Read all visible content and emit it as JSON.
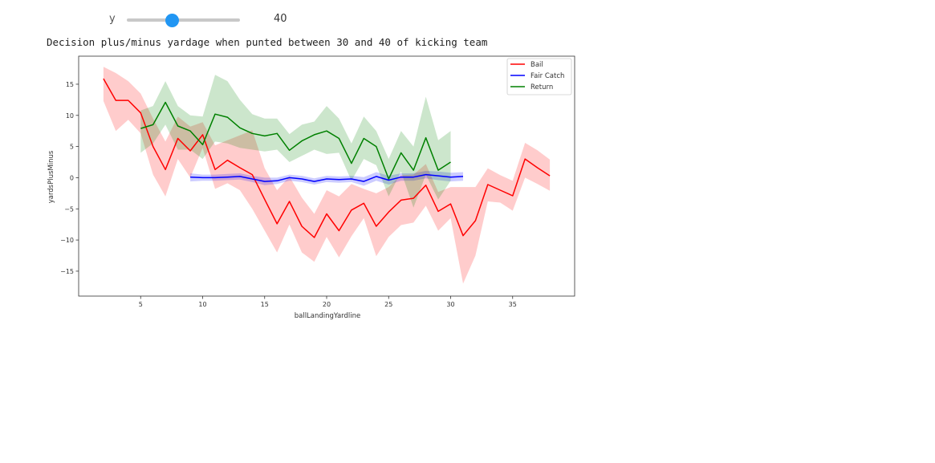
{
  "widget": {
    "slider_label": "y",
    "slider_value": "40",
    "slider_min": 0,
    "slider_max": 100,
    "slider_level": 40
  },
  "colors": {
    "bail": "#ff0000",
    "fair_catch": "#0000ff",
    "return": "#008000"
  },
  "chart_data": {
    "type": "line",
    "title": "Decision plus/minus yardage when punted between 30 and 40 of kicking team",
    "xlabel": "ballLandingYardline",
    "ylabel": "yardsPlusMinus",
    "xlim": [
      0,
      40
    ],
    "ylim": [
      -19,
      19.5
    ],
    "xticks": [
      5,
      10,
      15,
      20,
      25,
      30,
      35
    ],
    "yticks": [
      -15,
      -10,
      -5,
      0,
      5,
      10,
      15
    ],
    "legend_position": "top-right",
    "series": [
      {
        "name": "Bail",
        "color": "#ff0000",
        "x": [
          2,
          3,
          4,
          5,
          6,
          7,
          8,
          9,
          10,
          11,
          12,
          13,
          14,
          15,
          16,
          17,
          18,
          19,
          20,
          21,
          22,
          23,
          24,
          25,
          26,
          27,
          28,
          29,
          30,
          31,
          32,
          33,
          34,
          35,
          36,
          37,
          38
        ],
        "y": [
          15.9,
          12.4,
          12.4,
          10.4,
          5.0,
          1.3,
          6.3,
          4.3,
          6.9,
          1.3,
          2.8,
          1.6,
          0.5,
          -3.5,
          -7.4,
          -3.8,
          -7.8,
          -9.6,
          -5.8,
          -8.5,
          -5.2,
          -4.1,
          -7.8,
          -5.5,
          -3.6,
          -3.3,
          -1.2,
          -5.4,
          -4.2,
          -9.3,
          -6.9,
          -1.1,
          -2.0,
          -2.9,
          3.0,
          1.6,
          0.3
        ],
        "lower": [
          12.3,
          7.5,
          9.3,
          7.1,
          0.5,
          -3.0,
          3.0,
          0.0,
          4.8,
          -1.8,
          -0.9,
          -2.0,
          -5.0,
          -8.5,
          -12.0,
          -7.5,
          -12.0,
          -13.5,
          -9.5,
          -12.8,
          -9.4,
          -6.5,
          -12.6,
          -9.5,
          -7.6,
          -7.2,
          -4.5,
          -8.5,
          -6.5,
          -17.0,
          -12.5,
          -3.8,
          -4.0,
          -5.3,
          0.0,
          -1.0,
          -2.1
        ],
        "upper": [
          17.8,
          16.8,
          15.5,
          13.5,
          9.5,
          5.8,
          9.8,
          8.2,
          8.9,
          5.2,
          6.0,
          6.8,
          7.6,
          1.5,
          -2.0,
          0.2,
          -3.2,
          -5.8,
          -2.0,
          -3.0,
          -1.0,
          -1.8,
          -2.5,
          -1.5,
          0.4,
          0.5,
          2.2,
          -2.3,
          -1.5,
          -1.5,
          -1.5,
          1.5,
          0.4,
          -0.5,
          5.6,
          4.4,
          2.9
        ]
      },
      {
        "name": "Fair Catch",
        "color": "#0000ff",
        "x": [
          9,
          10,
          11,
          12,
          13,
          14,
          15,
          16,
          17,
          18,
          19,
          20,
          21,
          22,
          23,
          24,
          25,
          26,
          27,
          28,
          29,
          30,
          31
        ],
        "y": [
          0.1,
          0.0,
          0.0,
          0.1,
          0.2,
          -0.2,
          -0.6,
          -0.5,
          0.0,
          -0.2,
          -0.6,
          -0.2,
          -0.3,
          -0.2,
          -0.6,
          0.2,
          -0.4,
          0.1,
          0.1,
          0.5,
          0.3,
          0.1,
          0.2
        ],
        "lower": [
          -0.6,
          -0.5,
          -0.5,
          -0.4,
          -0.3,
          -0.7,
          -1.2,
          -1.0,
          -0.5,
          -0.7,
          -1.1,
          -0.7,
          -0.8,
          -0.7,
          -1.3,
          -0.5,
          -1.1,
          -0.5,
          -0.5,
          -0.1,
          -0.4,
          -0.6,
          -0.5
        ],
        "upper": [
          0.7,
          0.5,
          0.5,
          0.6,
          0.7,
          0.3,
          0.0,
          0.0,
          0.5,
          0.3,
          -0.1,
          0.3,
          0.2,
          0.3,
          0.1,
          0.9,
          0.3,
          0.7,
          0.7,
          1.1,
          1.0,
          0.8,
          0.9
        ]
      },
      {
        "name": "Return",
        "color": "#008000",
        "x": [
          5,
          6,
          7,
          8,
          9,
          10,
          11,
          12,
          13,
          14,
          15,
          16,
          17,
          18,
          19,
          20,
          21,
          22,
          23,
          24,
          25,
          26,
          27,
          28,
          29,
          30
        ],
        "y": [
          7.9,
          8.5,
          12.1,
          8.3,
          7.5,
          5.3,
          10.2,
          9.7,
          8.0,
          7.1,
          6.7,
          7.1,
          4.4,
          5.9,
          6.9,
          7.5,
          6.3,
          2.3,
          6.3,
          5.0,
          -0.2,
          4.0,
          1.2,
          6.4,
          1.2,
          2.5
        ],
        "lower": [
          4.0,
          5.5,
          8.5,
          4.5,
          4.5,
          3.0,
          5.8,
          5.5,
          4.8,
          4.5,
          4.2,
          4.5,
          2.5,
          3.5,
          4.5,
          3.8,
          4.0,
          -0.5,
          3.0,
          2.0,
          -3.0,
          1.0,
          -4.8,
          0.5,
          -3.5,
          -0.5
        ],
        "upper": [
          10.8,
          11.5,
          15.5,
          11.5,
          10.0,
          9.8,
          16.5,
          15.5,
          12.5,
          10.2,
          9.5,
          9.5,
          7.0,
          8.5,
          9.0,
          11.5,
          9.5,
          5.5,
          9.8,
          7.5,
          3.0,
          7.5,
          5.0,
          13.0,
          6.0,
          7.5
        ]
      }
    ]
  }
}
